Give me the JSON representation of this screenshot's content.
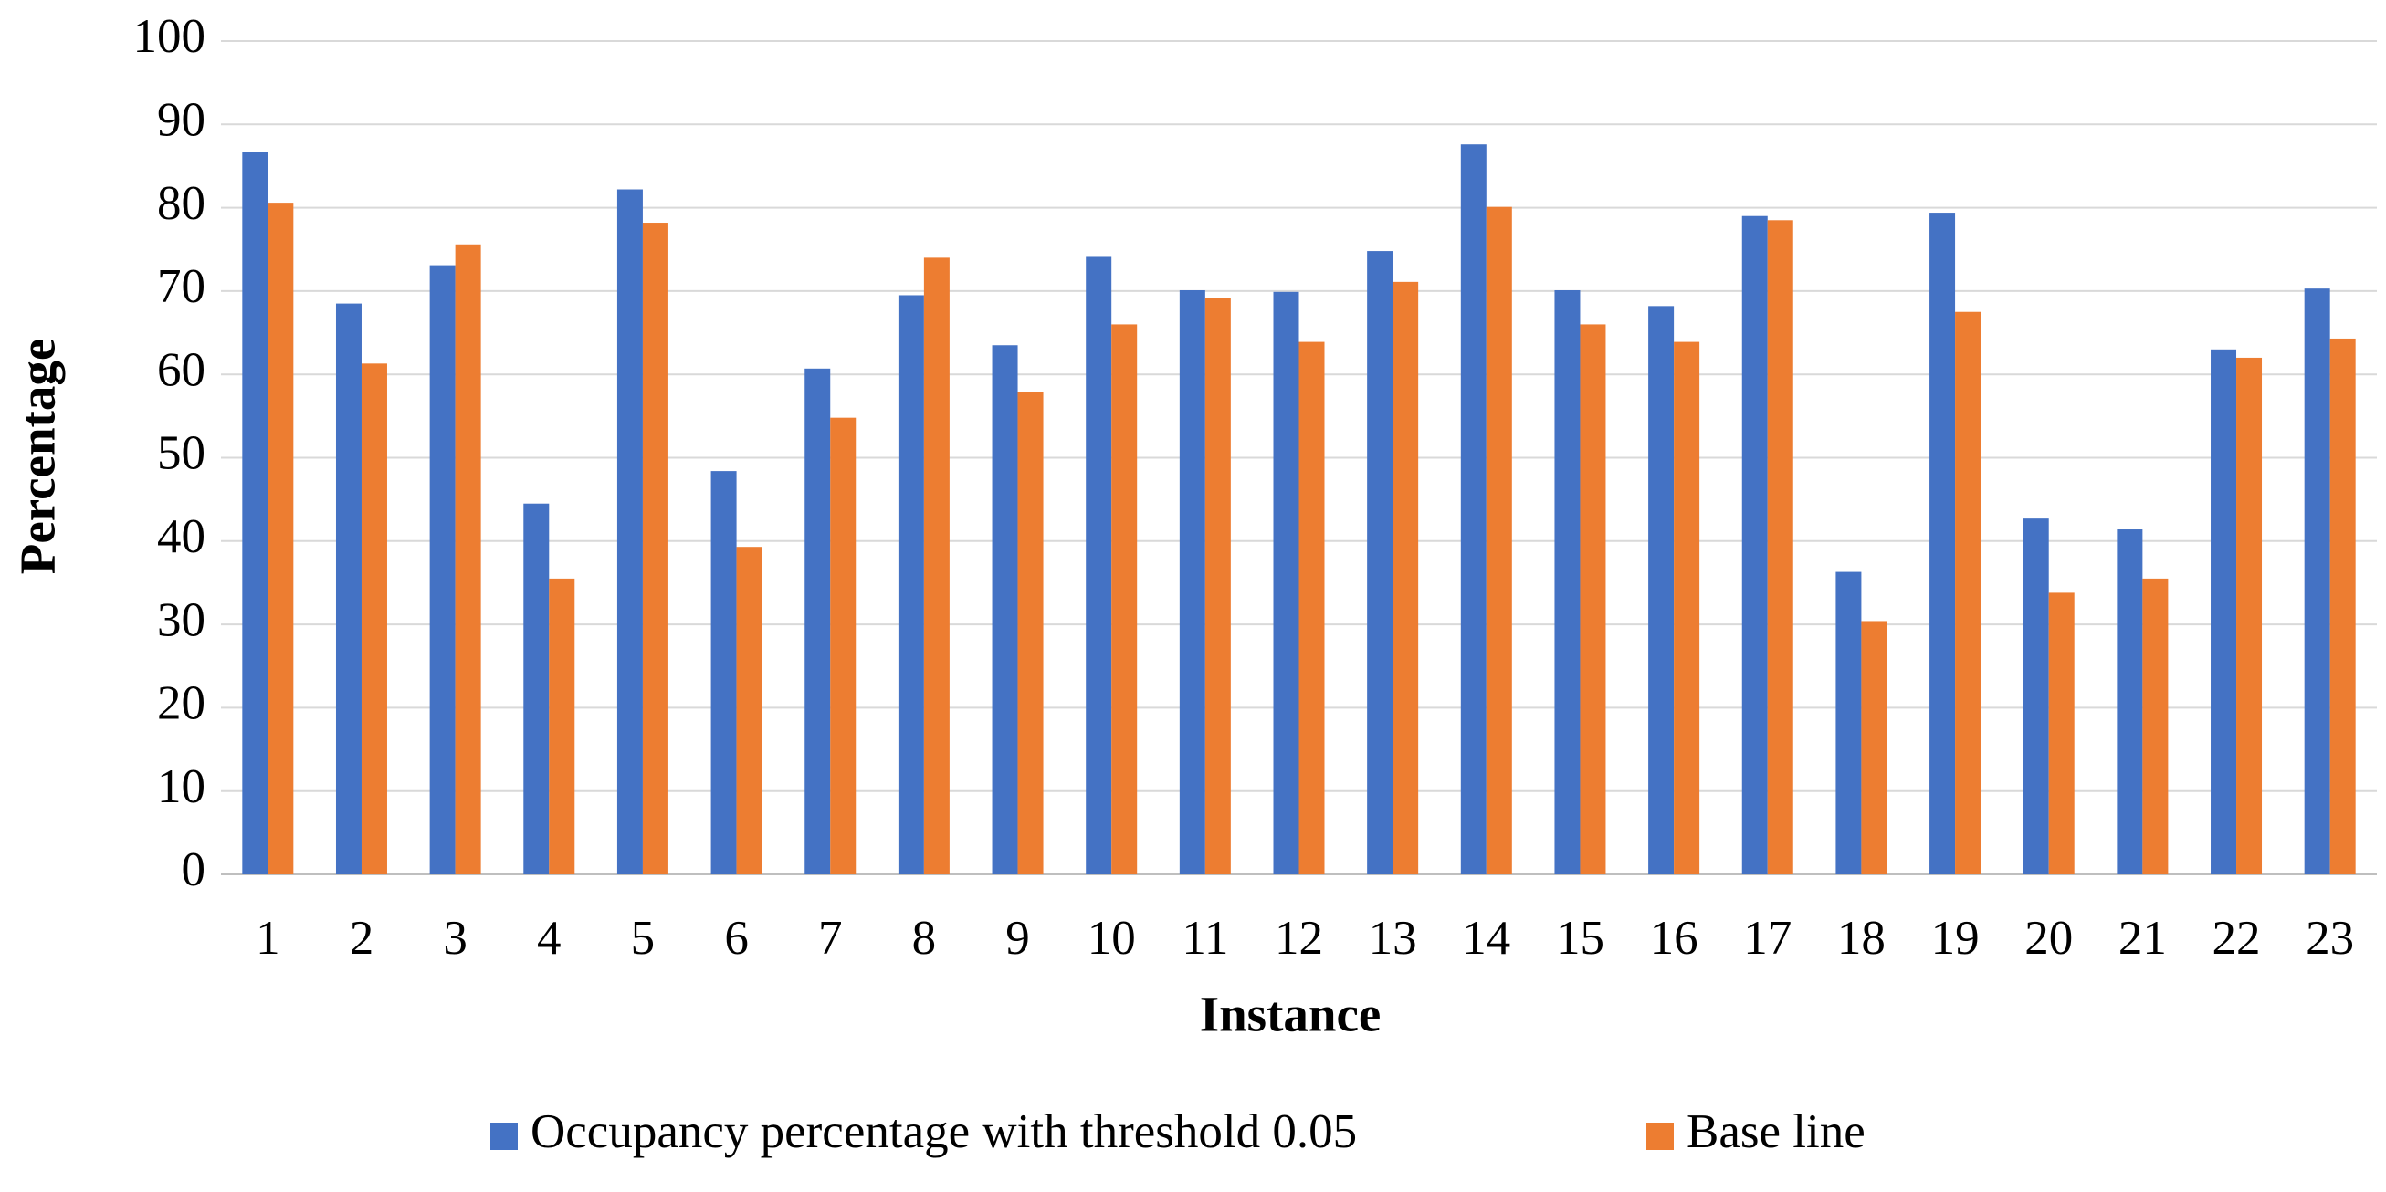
{
  "chart_data": {
    "type": "bar",
    "x_label": "Instance",
    "y_label": "Percentage",
    "categories": [
      "1",
      "2",
      "3",
      "4",
      "5",
      "6",
      "7",
      "8",
      "9",
      "10",
      "11",
      "12",
      "13",
      "14",
      "15",
      "16",
      "17",
      "18",
      "19",
      "20",
      "21",
      "22",
      "23"
    ],
    "series": [
      {
        "name": "Occupancy percentage with threshold 0.05",
        "color": "#4472c4",
        "values": [
          86.7,
          68.5,
          73.1,
          44.5,
          82.2,
          48.4,
          60.7,
          69.5,
          63.5,
          74.1,
          70.1,
          69.9,
          74.8,
          87.6,
          70.1,
          68.2,
          79.0,
          36.3,
          79.4,
          42.7,
          41.4,
          63.0,
          70.3
        ]
      },
      {
        "name": "Base line",
        "color": "#ed7d31",
        "values": [
          80.6,
          61.3,
          75.6,
          35.5,
          78.2,
          39.3,
          54.8,
          74.0,
          57.9,
          66.0,
          69.2,
          63.9,
          71.1,
          80.1,
          66.0,
          63.9,
          78.5,
          30.4,
          67.5,
          33.8,
          35.5,
          62.0,
          64.3
        ]
      }
    ],
    "ylim": [
      0,
      100
    ],
    "yticks": [
      0,
      10,
      20,
      30,
      40,
      50,
      60,
      70,
      80,
      90,
      100
    ],
    "grid": true,
    "legend": "bottom"
  }
}
